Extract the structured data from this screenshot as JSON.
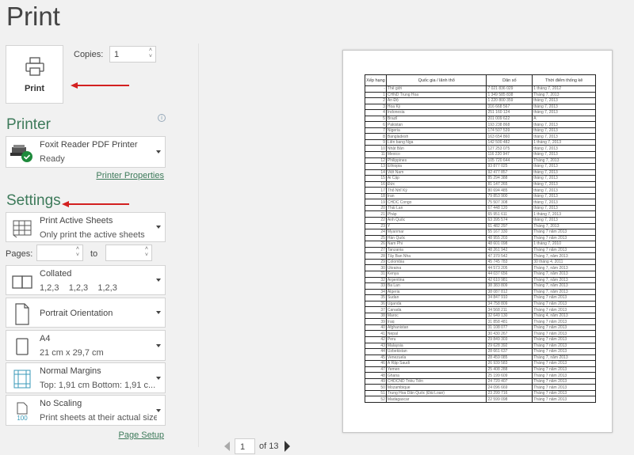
{
  "title": "Print",
  "print_button": {
    "label": "Print",
    "icon": "printer-icon"
  },
  "copies": {
    "label": "Copies:",
    "value": "1"
  },
  "printer": {
    "heading": "Printer",
    "name": "Foxit Reader PDF Printer",
    "status": "Ready",
    "properties_link": "Printer Properties",
    "info_icon": "info-icon"
  },
  "settings": {
    "heading": "Settings",
    "what": {
      "title": "Print Active Sheets",
      "subtitle": "Only print the active sheets"
    },
    "pages": {
      "label": "Pages:",
      "from": "",
      "to_label": "to",
      "to": ""
    },
    "collation": {
      "title": "Collated",
      "subtitle": "1,2,3    1,2,3    1,2,3"
    },
    "orientation": {
      "title": "Portrait Orientation"
    },
    "paper": {
      "title": "A4",
      "subtitle": "21 cm x 29,7 cm"
    },
    "margins": {
      "title": "Normal Margins",
      "subtitle": "Top: 1,91 cm Bottom: 1,91 c..."
    },
    "scaling": {
      "title": "No Scaling",
      "subtitle": "Print sheets at their actual size",
      "icon_text": "100"
    },
    "page_setup_link": "Page Setup"
  },
  "preview": {
    "columns": [
      "Xếp hạng",
      "Quốc gia / lãnh thổ",
      "Dân số",
      "Thời điểm thống kê"
    ],
    "rows": [
      [
        "-",
        "Thế giới",
        "7 021 836 029",
        "1 tháng 7, 2012"
      ],
      [
        "1",
        "CHND Trung Hoa",
        "1 349 585 838",
        "Tháng 7, 2013"
      ],
      [
        "2",
        "Ấn Độ",
        "1 220 800 359",
        "tháng 7, 2013"
      ],
      [
        "3",
        "Hoa Kỳ",
        "316 668 567",
        "tháng 7, 2013"
      ],
      [
        "4",
        "Indonesia",
        "251 160 124",
        "tháng 7, 2013"
      ],
      [
        "5",
        "Brazil",
        "201 009 622",
        "A"
      ],
      [
        "6",
        "Pakistan",
        "193 238 868",
        "tháng 7, 2013"
      ],
      [
        "7",
        "Nigeria",
        "174 507 539",
        "tháng 7, 2013"
      ],
      [
        "8",
        "Bangladesh",
        "163 654 860",
        "tháng 7, 2013"
      ],
      [
        "9",
        "Liên bang Nga",
        "142 500 482",
        "1 tháng 7, 2013"
      ],
      [
        "10",
        "Nhật Bản",
        "127 253 075",
        "tháng 7, 2013"
      ],
      [
        "11",
        "Mexico",
        "116 220 947",
        "tháng 7, 2013"
      ],
      [
        "12",
        "Philippines",
        "105 720 644",
        "Tháng 7, 2013"
      ],
      [
        "13",
        "Ethiopia",
        "93 877 025",
        "tháng 7, 2013"
      ],
      [
        "14",
        "Việt Nam",
        "92 477 857",
        "tháng 7, 2013"
      ],
      [
        "15",
        "Ai Cập",
        "85 294 388",
        "tháng 7, 2013"
      ],
      [
        "16",
        "Đức",
        "81 147 265",
        "tháng 7, 2013"
      ],
      [
        "17",
        "Thổ Nhĩ Kỳ",
        "80 694 485",
        "tháng 7, 2013"
      ],
      [
        "18",
        "Iran",
        "79 853 900",
        "tháng 7, 2013"
      ],
      [
        "19",
        "CHDC Congo",
        "75 507 308",
        "tháng 7, 2013"
      ],
      [
        "20",
        "Thái Lan",
        "67 448 120",
        "tháng 7, 2013"
      ],
      [
        "21",
        "Pháp",
        "65 951 611",
        "1 tháng 7, 2013"
      ],
      [
        "22",
        "Anh Quốc",
        "63 395 574",
        "tháng 7, 2013"
      ],
      [
        "23",
        "Ý",
        "61 482 297",
        "Tháng 7, 2013"
      ],
      [
        "24",
        "Myanmar",
        "55 167 330",
        "Tháng 7 năm 2013"
      ],
      [
        "25",
        "Hàn Quốc",
        "48 955 203",
        "Tháng 7 năm 2013"
      ],
      [
        "26",
        "Nam Phi",
        "48 601 098",
        "1 tháng 7, 2010"
      ],
      [
        "27",
        "Tanzania",
        "48 261 942",
        "Tháng 7 năm 2013"
      ],
      [
        "28",
        "Tây Ban Nha",
        "47 370 542",
        "Tháng 7, năm 2013"
      ],
      [
        "29",
        "Colombia",
        "45 745 783",
        "30 tháng 4, 2011"
      ],
      [
        "30",
        "Ukraina",
        "44 573 205",
        "Tháng 7, năm 2013"
      ],
      [
        "31",
        "Kenya",
        "44 037 656",
        "Tháng 7, năm 2013"
      ],
      [
        "32",
        "Argentina",
        "42 610 981",
        "Tháng 7, năm 2013"
      ],
      [
        "33",
        "Ba Lan",
        "38 383 809",
        "Tháng 7, năm 2013"
      ],
      [
        "34",
        "Algeria",
        "38 087 812",
        "Tháng 7, năm 2013"
      ],
      [
        "35",
        "Sudan",
        "34 847 910",
        "Tháng 7 năm 2013"
      ],
      [
        "36",
        "Uganda",
        "34 758 809",
        "Tháng 7 năm 2013"
      ],
      [
        "37",
        "Canada",
        "34 568 211",
        "Tháng 7 năm 2013"
      ],
      [
        "38",
        "Maroc",
        "32 649 130",
        "Tháng 4, năm 2013"
      ],
      [
        "39",
        "Iraq",
        "31 858 481",
        "Tháng 7 năm 2013"
      ],
      [
        "40",
        "Afghanistan",
        "31 108 077",
        "Tháng 7 năm 2013"
      ],
      [
        "41",
        "Nepal",
        "30 430 267",
        "Tháng 7 năm 2013"
      ],
      [
        "42",
        "Peru",
        "29 849 303",
        "Tháng 7 năm 2013"
      ],
      [
        "43",
        "Malaysia",
        "29 628 392",
        "Tháng 7 năm 2013"
      ],
      [
        "44",
        "Uzbekistan",
        "28 661 637",
        "Tháng 7 năm 2013"
      ],
      [
        "45",
        "Venezuela",
        "28 459 085",
        "Tháng 7, năm 2013"
      ],
      [
        "46",
        "Ả Rập Saudi",
        "26 939 583",
        "Tháng 7 năm 2013"
      ],
      [
        "47",
        "Yemen",
        "25 408 288",
        "Tháng 7 năm 2013"
      ],
      [
        "48",
        "Ghana",
        "25 199 609",
        "Tháng 7 năm 2013"
      ],
      [
        "49",
        "CHDCND Triều Tiên",
        "24 720 407",
        "Tháng 7 năm 2013"
      ],
      [
        "50",
        "Mozambique",
        "24 096 669",
        "Tháng 7 năm 2013"
      ],
      [
        "51",
        "Trung Hoa Dân Quốc (Đài Loan)",
        "23 299 716",
        "Tháng 7 năm 2013"
      ],
      [
        "52",
        "Madagascar",
        "22 599 098",
        "Tháng 7 năm 2013"
      ]
    ]
  },
  "navigation": {
    "current_page": "1",
    "of_label": "of 13"
  },
  "colors": {
    "accent": "#3d7a5a",
    "annotation_arrow": "#d32020",
    "link": "#3d7a5a"
  }
}
